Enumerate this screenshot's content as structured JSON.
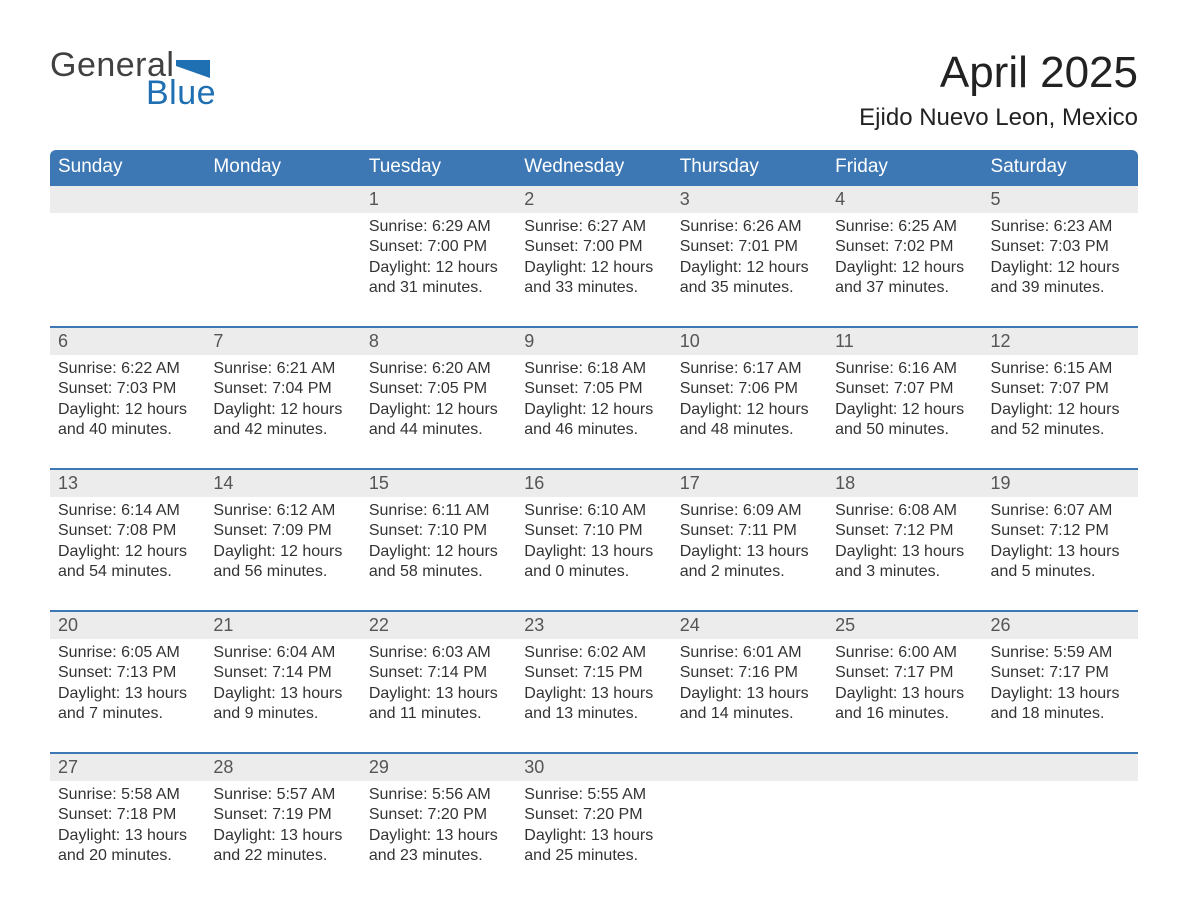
{
  "logo": {
    "word1": "General",
    "word2": "Blue"
  },
  "title": "April 2025",
  "subtitle": "Ejido Nuevo Leon, Mexico",
  "colors": {
    "header_blue": "#3d78b4",
    "accent_blue": "#1f6fb3",
    "row_stripe": "#ececec",
    "text_dark": "#333333",
    "logo_dark": "#414141"
  },
  "day_headers": [
    "Sunday",
    "Monday",
    "Tuesday",
    "Wednesday",
    "Thursday",
    "Friday",
    "Saturday"
  ],
  "weeks": [
    [
      null,
      null,
      {
        "n": "1",
        "sunrise": "6:29 AM",
        "sunset": "7:00 PM",
        "daylight": "12 hours and 31 minutes."
      },
      {
        "n": "2",
        "sunrise": "6:27 AM",
        "sunset": "7:00 PM",
        "daylight": "12 hours and 33 minutes."
      },
      {
        "n": "3",
        "sunrise": "6:26 AM",
        "sunset": "7:01 PM",
        "daylight": "12 hours and 35 minutes."
      },
      {
        "n": "4",
        "sunrise": "6:25 AM",
        "sunset": "7:02 PM",
        "daylight": "12 hours and 37 minutes."
      },
      {
        "n": "5",
        "sunrise": "6:23 AM",
        "sunset": "7:03 PM",
        "daylight": "12 hours and 39 minutes."
      }
    ],
    [
      {
        "n": "6",
        "sunrise": "6:22 AM",
        "sunset": "7:03 PM",
        "daylight": "12 hours and 40 minutes."
      },
      {
        "n": "7",
        "sunrise": "6:21 AM",
        "sunset": "7:04 PM",
        "daylight": "12 hours and 42 minutes."
      },
      {
        "n": "8",
        "sunrise": "6:20 AM",
        "sunset": "7:05 PM",
        "daylight": "12 hours and 44 minutes."
      },
      {
        "n": "9",
        "sunrise": "6:18 AM",
        "sunset": "7:05 PM",
        "daylight": "12 hours and 46 minutes."
      },
      {
        "n": "10",
        "sunrise": "6:17 AM",
        "sunset": "7:06 PM",
        "daylight": "12 hours and 48 minutes."
      },
      {
        "n": "11",
        "sunrise": "6:16 AM",
        "sunset": "7:07 PM",
        "daylight": "12 hours and 50 minutes."
      },
      {
        "n": "12",
        "sunrise": "6:15 AM",
        "sunset": "7:07 PM",
        "daylight": "12 hours and 52 minutes."
      }
    ],
    [
      {
        "n": "13",
        "sunrise": "6:14 AM",
        "sunset": "7:08 PM",
        "daylight": "12 hours and 54 minutes."
      },
      {
        "n": "14",
        "sunrise": "6:12 AM",
        "sunset": "7:09 PM",
        "daylight": "12 hours and 56 minutes."
      },
      {
        "n": "15",
        "sunrise": "6:11 AM",
        "sunset": "7:10 PM",
        "daylight": "12 hours and 58 minutes."
      },
      {
        "n": "16",
        "sunrise": "6:10 AM",
        "sunset": "7:10 PM",
        "daylight": "13 hours and 0 minutes."
      },
      {
        "n": "17",
        "sunrise": "6:09 AM",
        "sunset": "7:11 PM",
        "daylight": "13 hours and 2 minutes."
      },
      {
        "n": "18",
        "sunrise": "6:08 AM",
        "sunset": "7:12 PM",
        "daylight": "13 hours and 3 minutes."
      },
      {
        "n": "19",
        "sunrise": "6:07 AM",
        "sunset": "7:12 PM",
        "daylight": "13 hours and 5 minutes."
      }
    ],
    [
      {
        "n": "20",
        "sunrise": "6:05 AM",
        "sunset": "7:13 PM",
        "daylight": "13 hours and 7 minutes."
      },
      {
        "n": "21",
        "sunrise": "6:04 AM",
        "sunset": "7:14 PM",
        "daylight": "13 hours and 9 minutes."
      },
      {
        "n": "22",
        "sunrise": "6:03 AM",
        "sunset": "7:14 PM",
        "daylight": "13 hours and 11 minutes."
      },
      {
        "n": "23",
        "sunrise": "6:02 AM",
        "sunset": "7:15 PM",
        "daylight": "13 hours and 13 minutes."
      },
      {
        "n": "24",
        "sunrise": "6:01 AM",
        "sunset": "7:16 PM",
        "daylight": "13 hours and 14 minutes."
      },
      {
        "n": "25",
        "sunrise": "6:00 AM",
        "sunset": "7:17 PM",
        "daylight": "13 hours and 16 minutes."
      },
      {
        "n": "26",
        "sunrise": "5:59 AM",
        "sunset": "7:17 PM",
        "daylight": "13 hours and 18 minutes."
      }
    ],
    [
      {
        "n": "27",
        "sunrise": "5:58 AM",
        "sunset": "7:18 PM",
        "daylight": "13 hours and 20 minutes."
      },
      {
        "n": "28",
        "sunrise": "5:57 AM",
        "sunset": "7:19 PM",
        "daylight": "13 hours and 22 minutes."
      },
      {
        "n": "29",
        "sunrise": "5:56 AM",
        "sunset": "7:20 PM",
        "daylight": "13 hours and 23 minutes."
      },
      {
        "n": "30",
        "sunrise": "5:55 AM",
        "sunset": "7:20 PM",
        "daylight": "13 hours and 25 minutes."
      },
      null,
      null,
      null
    ]
  ],
  "labels": {
    "sunrise": "Sunrise: ",
    "sunset": "Sunset: ",
    "daylight": "Daylight: "
  }
}
